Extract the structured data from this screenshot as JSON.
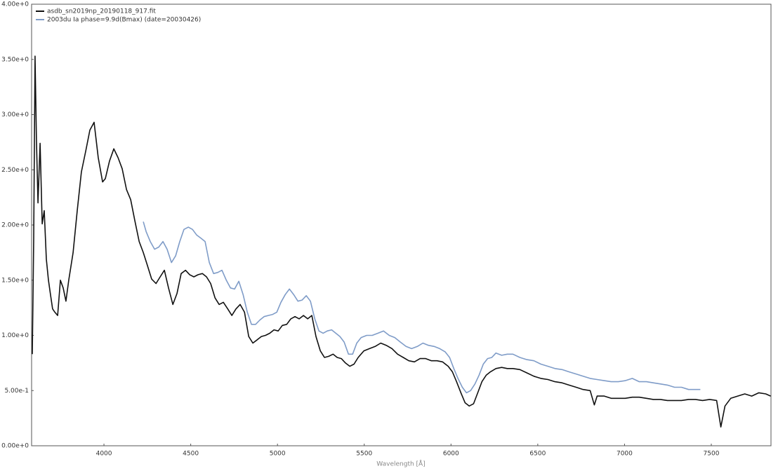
{
  "chart_data": {
    "type": "line",
    "xlabel": "Wavelength [Å]",
    "xlim": [
      3583,
      7844
    ],
    "ylim": [
      0,
      4
    ],
    "xticks": [
      4000,
      4500,
      5000,
      5500,
      6000,
      6500,
      7000,
      7500
    ],
    "yticks": [
      {
        "value": 0,
        "label": "0.00e+0"
      },
      {
        "value": 0.5,
        "label": "5.00e-1"
      },
      {
        "value": 1,
        "label": "1.00e+0"
      },
      {
        "value": 1.5,
        "label": "1.50e+0"
      },
      {
        "value": 2,
        "label": "2.00e+0"
      },
      {
        "value": 2.5,
        "label": "2.50e+0"
      },
      {
        "value": 3,
        "label": "3.00e+0"
      },
      {
        "value": 3.5,
        "label": "3.50e+0"
      },
      {
        "value": 4,
        "label": "4.00e+0"
      }
    ],
    "grid": false,
    "legend": "upper-left",
    "series": [
      {
        "name": "asdb_sn2019np_20190118_917.fit",
        "color": "#111111",
        "x": [
          3587,
          3595,
          3603,
          3611,
          3620,
          3632,
          3644,
          3656,
          3668,
          3680,
          3692,
          3704,
          3717,
          3733,
          3749,
          3765,
          3781,
          3797,
          3822,
          3846,
          3870,
          3895,
          3919,
          3943,
          3967,
          3992,
          4008,
          4032,
          4057,
          4081,
          4105,
          4130,
          4154,
          4178,
          4203,
          4227,
          4251,
          4275,
          4300,
          4324,
          4348,
          4372,
          4397,
          4421,
          4445,
          4470,
          4494,
          4518,
          4543,
          4567,
          4591,
          4615,
          4640,
          4664,
          4688,
          4713,
          4737,
          4761,
          4785,
          4810,
          4834,
          4858,
          4883,
          4907,
          4931,
          4956,
          4980,
          5004,
          5028,
          5053,
          5077,
          5101,
          5125,
          5150,
          5174,
          5198,
          5222,
          5247,
          5271,
          5295,
          5320,
          5344,
          5368,
          5392,
          5417,
          5441,
          5465,
          5498,
          5530,
          5563,
          5595,
          5627,
          5660,
          5692,
          5725,
          5757,
          5789,
          5822,
          5854,
          5887,
          5919,
          5951,
          5984,
          6008,
          6032,
          6057,
          6081,
          6105,
          6130,
          6154,
          6178,
          6203,
          6227,
          6259,
          6292,
          6324,
          6357,
          6397,
          6437,
          6478,
          6518,
          6559,
          6599,
          6640,
          6680,
          6721,
          6761,
          6802,
          6826,
          6842,
          6883,
          6923,
          6964,
          7004,
          7045,
          7085,
          7126,
          7166,
          7207,
          7247,
          7288,
          7328,
          7369,
          7409,
          7450,
          7490,
          7531,
          7555,
          7579,
          7612,
          7652,
          7693,
          7733,
          7774,
          7814,
          7842
        ],
        "values": [
          0.83,
          1.88,
          3.53,
          2.77,
          2.2,
          2.74,
          2.01,
          2.13,
          1.69,
          1.5,
          1.37,
          1.24,
          1.21,
          1.18,
          1.5,
          1.43,
          1.31,
          1.5,
          1.75,
          2.13,
          2.48,
          2.67,
          2.86,
          2.93,
          2.61,
          2.39,
          2.42,
          2.58,
          2.69,
          2.61,
          2.51,
          2.32,
          2.23,
          2.04,
          1.85,
          1.75,
          1.63,
          1.51,
          1.47,
          1.53,
          1.59,
          1.43,
          1.28,
          1.38,
          1.56,
          1.59,
          1.55,
          1.53,
          1.55,
          1.56,
          1.53,
          1.47,
          1.34,
          1.28,
          1.3,
          1.24,
          1.18,
          1.24,
          1.28,
          1.21,
          0.99,
          0.93,
          0.96,
          0.99,
          1.0,
          1.02,
          1.05,
          1.04,
          1.09,
          1.1,
          1.15,
          1.17,
          1.15,
          1.18,
          1.15,
          1.18,
          0.99,
          0.86,
          0.8,
          0.81,
          0.83,
          0.8,
          0.79,
          0.75,
          0.72,
          0.74,
          0.8,
          0.86,
          0.88,
          0.9,
          0.93,
          0.91,
          0.88,
          0.83,
          0.8,
          0.77,
          0.76,
          0.79,
          0.79,
          0.77,
          0.77,
          0.76,
          0.72,
          0.67,
          0.58,
          0.48,
          0.39,
          0.36,
          0.38,
          0.48,
          0.58,
          0.64,
          0.67,
          0.7,
          0.71,
          0.7,
          0.7,
          0.69,
          0.66,
          0.63,
          0.61,
          0.6,
          0.58,
          0.57,
          0.55,
          0.53,
          0.51,
          0.5,
          0.37,
          0.45,
          0.45,
          0.43,
          0.43,
          0.43,
          0.44,
          0.44,
          0.43,
          0.42,
          0.42,
          0.41,
          0.41,
          0.41,
          0.42,
          0.42,
          0.41,
          0.42,
          0.41,
          0.17,
          0.36,
          0.43,
          0.45,
          0.47,
          0.45,
          0.48,
          0.47,
          0.45
        ]
      },
      {
        "name": "2003du Ia phase=9.9d(Bmax) (date=20030426)",
        "color": "#7f9cc8",
        "x": [
          4227,
          4243,
          4267,
          4292,
          4316,
          4340,
          4364,
          4389,
          4413,
          4437,
          4461,
          4486,
          4510,
          4534,
          4559,
          4583,
          4607,
          4632,
          4656,
          4680,
          4705,
          4729,
          4753,
          4777,
          4802,
          4826,
          4850,
          4874,
          4899,
          4923,
          4947,
          4972,
          4996,
          5020,
          5045,
          5069,
          5093,
          5118,
          5142,
          5166,
          5190,
          5215,
          5239,
          5263,
          5287,
          5312,
          5336,
          5360,
          5384,
          5409,
          5433,
          5457,
          5482,
          5514,
          5546,
          5579,
          5611,
          5644,
          5676,
          5708,
          5741,
          5773,
          5806,
          5838,
          5870,
          5903,
          5935,
          5967,
          5992,
          6016,
          6040,
          6065,
          6089,
          6113,
          6138,
          6162,
          6186,
          6211,
          6235,
          6259,
          6292,
          6324,
          6357,
          6397,
          6437,
          6478,
          6518,
          6559,
          6599,
          6640,
          6680,
          6721,
          6761,
          6802,
          6842,
          6883,
          6923,
          6964,
          7004,
          7045,
          7085,
          7126,
          7166,
          7207,
          7247,
          7288,
          7328,
          7369,
          7409,
          7437
        ],
        "values": [
          2.03,
          1.94,
          1.85,
          1.78,
          1.8,
          1.85,
          1.78,
          1.66,
          1.72,
          1.85,
          1.96,
          1.98,
          1.96,
          1.91,
          1.88,
          1.85,
          1.66,
          1.56,
          1.57,
          1.59,
          1.5,
          1.43,
          1.42,
          1.49,
          1.37,
          1.21,
          1.1,
          1.1,
          1.14,
          1.17,
          1.18,
          1.19,
          1.21,
          1.3,
          1.37,
          1.42,
          1.37,
          1.31,
          1.32,
          1.36,
          1.31,
          1.15,
          1.04,
          1.02,
          1.04,
          1.05,
          1.02,
          0.99,
          0.94,
          0.83,
          0.83,
          0.93,
          0.98,
          1.0,
          1.0,
          1.02,
          1.04,
          1.0,
          0.98,
          0.94,
          0.9,
          0.88,
          0.9,
          0.93,
          0.91,
          0.9,
          0.88,
          0.85,
          0.8,
          0.7,
          0.61,
          0.53,
          0.48,
          0.5,
          0.56,
          0.64,
          0.74,
          0.79,
          0.8,
          0.84,
          0.82,
          0.83,
          0.83,
          0.8,
          0.78,
          0.77,
          0.74,
          0.72,
          0.7,
          0.69,
          0.67,
          0.65,
          0.63,
          0.61,
          0.6,
          0.59,
          0.58,
          0.58,
          0.59,
          0.61,
          0.58,
          0.58,
          0.57,
          0.56,
          0.55,
          0.53,
          0.53,
          0.51,
          0.51,
          0.51
        ]
      }
    ]
  }
}
